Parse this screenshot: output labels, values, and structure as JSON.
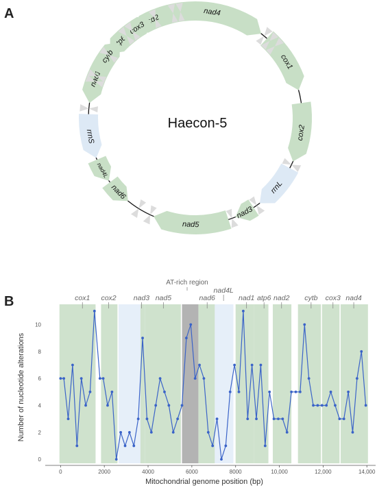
{
  "panel_a": {
    "label": "A",
    "center_title": "Haecon-5",
    "genes": [
      {
        "name": "nad4",
        "kind": "protein"
      },
      {
        "name": "cox1",
        "kind": "protein"
      },
      {
        "name": "cox2",
        "kind": "protein"
      },
      {
        "name": "rrnL",
        "kind": "rrna"
      },
      {
        "name": "nad3",
        "kind": "protein"
      },
      {
        "name": "nad5",
        "kind": "protein"
      },
      {
        "name": "nad6",
        "kind": "protein"
      },
      {
        "name": "nad4L",
        "kind": "protein"
      },
      {
        "name": "rrnS",
        "kind": "rrna"
      },
      {
        "name": "nad1",
        "kind": "protein"
      },
      {
        "name": "atp6",
        "kind": "protein"
      },
      {
        "name": "nad2",
        "kind": "protein"
      },
      {
        "name": "cytb",
        "kind": "protein"
      },
      {
        "name": "cox3",
        "kind": "protein"
      }
    ],
    "colors": {
      "protein": "#c8dfc6",
      "rrna": "#dde9f5",
      "trna": "#dcdcdc",
      "ring": "#111111"
    }
  },
  "panel_b": {
    "label": "B",
    "at_label": "AT-rich region",
    "region_labels": [
      "cox1",
      "cox2",
      "nad3",
      "nad5",
      "nad6",
      "nad4L",
      "nad1",
      "atp6",
      "nad2",
      "cytb",
      "cox3",
      "nad4"
    ],
    "colors": {
      "protein": "#cfe2cd",
      "rrna": "#e6eff9",
      "at": "#b3b3b3",
      "line": "#3a63c8"
    }
  },
  "chart_data": {
    "type": "line",
    "xlabel": "Mitochondrial genome position (bp)",
    "ylabel": "Number of nucleotide alterations",
    "xlim": [
      -700,
      14400
    ],
    "ylim": [
      -0.3,
      11.5
    ],
    "xticks": [
      0,
      2000,
      4000,
      6000,
      8000,
      10000,
      12000,
      14000
    ],
    "xtick_labels": [
      "0",
      "2000",
      "4000",
      "6000",
      "8000",
      "10,000",
      "12,000",
      "14,000"
    ],
    "yticks": [
      0,
      2,
      4,
      6,
      8,
      10
    ],
    "yticks_labels": [
      "0",
      "2",
      "4",
      "6",
      "8",
      "10"
    ],
    "x": [
      0,
      150,
      350,
      550,
      750,
      950,
      1150,
      1350,
      1550,
      1800,
      1950,
      2150,
      2350,
      2550,
      2750,
      2950,
      3150,
      3350,
      3550,
      3750,
      3950,
      4150,
      4350,
      4550,
      4750,
      4950,
      5150,
      5350,
      5550,
      5750,
      5950,
      6150,
      6350,
      6550,
      6750,
      6950,
      7150,
      7350,
      7550,
      7750,
      7950,
      8150,
      8350,
      8550,
      8750,
      8950,
      9150,
      9350,
      9550,
      9750,
      9950,
      10150,
      10350,
      10550,
      10750,
      10950,
      11150,
      11350,
      11550,
      11750,
      11950,
      12150,
      12350,
      12550,
      12750,
      12950,
      13150,
      13350,
      13550,
      13750,
      13950
    ],
    "y": [
      6,
      6,
      3,
      7,
      1,
      6,
      4,
      5,
      11,
      6,
      6,
      4,
      5,
      0,
      2,
      1,
      2,
      1,
      3,
      9,
      3,
      2,
      4,
      6,
      5,
      4,
      2,
      3,
      4,
      9,
      10,
      6,
      7,
      6,
      2,
      1,
      3,
      0,
      1,
      5,
      7,
      5,
      11,
      3,
      7,
      3,
      7,
      1,
      5,
      3,
      3,
      3,
      2,
      5,
      5,
      5,
      10,
      6,
      4,
      4,
      4,
      4,
      5,
      4,
      3,
      3,
      5,
      2,
      6,
      8,
      4
    ]
  }
}
